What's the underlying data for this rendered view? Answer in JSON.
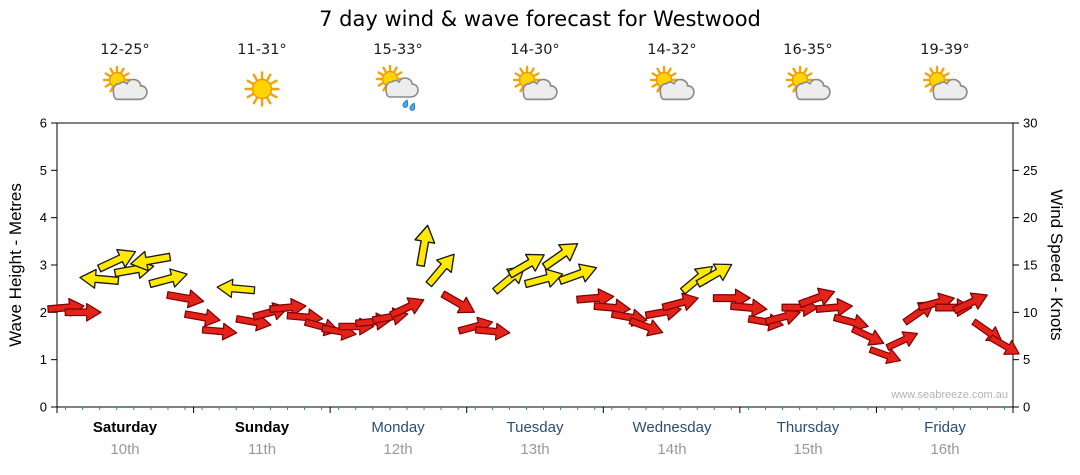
{
  "title": "7 day wind & wave forecast for Westwood",
  "watermark": "www.seabreeze.com.au",
  "days": [
    {
      "name": "Saturday",
      "date": "10th",
      "temp": "12-25°",
      "icon": "sun-cloud"
    },
    {
      "name": "Sunday",
      "date": "11th",
      "temp": "11-31°",
      "icon": "sun"
    },
    {
      "name": "Monday",
      "date": "12th",
      "temp": "15-33°",
      "icon": "sun-cloud-rain"
    },
    {
      "name": "Tuesday",
      "date": "13th",
      "temp": "14-30°",
      "icon": "sun-cloud"
    },
    {
      "name": "Wednesday",
      "date": "14th",
      "temp": "14-32°",
      "icon": "sun-cloud"
    },
    {
      "name": "Thursday",
      "date": "15th",
      "temp": "16-35°",
      "icon": "sun-cloud"
    },
    {
      "name": "Friday",
      "date": "16th",
      "temp": "19-39°",
      "icon": "sun-cloud"
    }
  ],
  "colors": {
    "arrow_yellow": "#FFE900",
    "arrow_yellow_stroke": "#1a1a1a",
    "arrow_red": "#E3231A",
    "arrow_red_stroke": "#7E0000",
    "weekend_label": "#000000",
    "weekday_label": "#2B4C77",
    "date_label": "#999999",
    "watermark": "#B3B3B3",
    "axis": "#000000",
    "tick_minor": "#2E86AB"
  },
  "chart_data": {
    "type": "wind_arrows",
    "title": "7 day wind & wave forecast for Westwood",
    "wave_axis": {
      "label": "Wave Height - Metres",
      "min": 0,
      "max": 6,
      "ticks": [
        0,
        1,
        2,
        3,
        4,
        5,
        6
      ]
    },
    "wind_axis": {
      "label": "Wind Speed - Knots",
      "min": 0,
      "max": 30,
      "ticks": [
        0,
        5,
        10,
        15,
        20,
        25,
        30
      ]
    },
    "x_days": [
      "Saturday 10th",
      "Sunday 11th",
      "Monday 12th",
      "Tuesday 13th",
      "Wednesday 14th",
      "Thursday 15th",
      "Friday 16th"
    ],
    "slots_per_day": 8,
    "arrow_format": [
      "slot",
      "knots",
      "direction_deg_cw_from_east",
      "color"
    ],
    "arrows": [
      [
        0,
        10.5,
        -5,
        "red"
      ],
      [
        1,
        10,
        0,
        "red"
      ],
      [
        2,
        13.5,
        185,
        "yellow"
      ],
      [
        3,
        15.5,
        -25,
        "yellow"
      ],
      [
        4,
        14.5,
        -10,
        "yellow"
      ],
      [
        5,
        15.5,
        170,
        "yellow"
      ],
      [
        6,
        13.5,
        -15,
        "yellow"
      ],
      [
        7,
        11.5,
        10,
        "red"
      ],
      [
        8,
        9.5,
        10,
        "red"
      ],
      [
        9,
        8,
        5,
        "red"
      ],
      [
        10,
        12.5,
        185,
        "yellow"
      ],
      [
        11,
        9,
        10,
        "red"
      ],
      [
        12,
        10,
        -15,
        "red"
      ],
      [
        13,
        10.5,
        -5,
        "red"
      ],
      [
        14,
        9.5,
        5,
        "red"
      ],
      [
        15,
        8.5,
        15,
        "red"
      ],
      [
        16,
        8,
        10,
        "red"
      ],
      [
        17,
        8.5,
        0,
        "red"
      ],
      [
        18,
        9,
        -5,
        "red"
      ],
      [
        19,
        9.5,
        -10,
        "red"
      ],
      [
        20,
        10.5,
        -25,
        "red"
      ],
      [
        21,
        17,
        -80,
        "yellow"
      ],
      [
        22,
        14.5,
        -50,
        "yellow"
      ],
      [
        23,
        11,
        30,
        "red"
      ],
      [
        24,
        8.5,
        -15,
        "red"
      ],
      [
        25,
        8,
        5,
        "red"
      ],
      [
        26,
        13.5,
        -40,
        "yellow"
      ],
      [
        27,
        15,
        -30,
        "yellow"
      ],
      [
        28,
        13.5,
        -15,
        "yellow"
      ],
      [
        29,
        16,
        -35,
        "yellow"
      ],
      [
        30,
        14,
        -20,
        "yellow"
      ],
      [
        31,
        11.5,
        -5,
        "red"
      ],
      [
        32,
        10.5,
        5,
        "red"
      ],
      [
        33,
        9.5,
        10,
        "red"
      ],
      [
        34,
        8.5,
        20,
        "red"
      ],
      [
        35,
        10,
        -10,
        "red"
      ],
      [
        36,
        11,
        -15,
        "red"
      ],
      [
        37,
        13.5,
        -40,
        "yellow"
      ],
      [
        38,
        14,
        -30,
        "yellow"
      ],
      [
        39,
        11.5,
        0,
        "red"
      ],
      [
        40,
        10.5,
        5,
        "red"
      ],
      [
        41,
        9,
        10,
        "red"
      ],
      [
        42,
        9.5,
        -15,
        "red"
      ],
      [
        43,
        10.5,
        0,
        "red"
      ],
      [
        44,
        11.5,
        -20,
        "red"
      ],
      [
        45,
        10.5,
        -5,
        "red"
      ],
      [
        46,
        9,
        15,
        "red"
      ],
      [
        47,
        7.5,
        25,
        "red"
      ],
      [
        48,
        5.5,
        20,
        "red"
      ],
      [
        49,
        7,
        -25,
        "red"
      ],
      [
        50,
        10,
        -35,
        "red"
      ],
      [
        51,
        11,
        -15,
        "red"
      ],
      [
        52,
        10.5,
        0,
        "red"
      ],
      [
        53,
        11,
        -25,
        "red"
      ],
      [
        54,
        8,
        35,
        "red"
      ],
      [
        55,
        6.5,
        30,
        "red"
      ]
    ]
  }
}
